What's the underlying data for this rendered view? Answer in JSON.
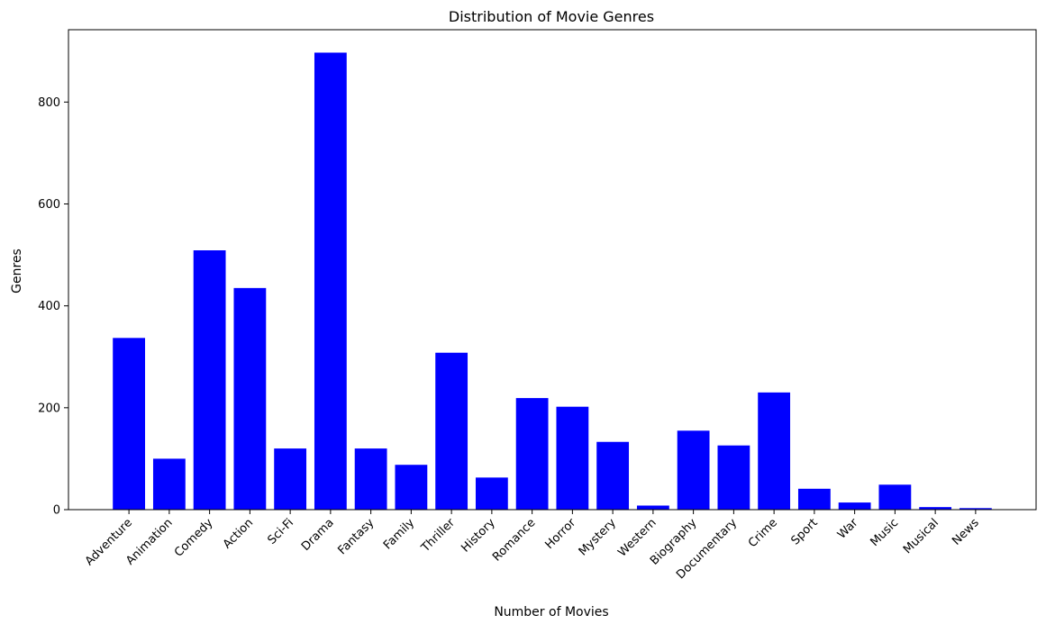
{
  "chart_data": {
    "type": "bar",
    "title": "Distribution of Movie Genres",
    "xlabel": "Number of Movies",
    "ylabel": "Genres",
    "categories": [
      "Adventure",
      "Animation",
      "Comedy",
      "Action",
      "Sci-Fi",
      "Drama",
      "Fantasy",
      "Family",
      "Thriller",
      "History",
      "Romance",
      "Horror",
      "Mystery",
      "Western",
      "Biography",
      "Documentary",
      "Crime",
      "Sport",
      "War",
      "Music",
      "Musical",
      "News"
    ],
    "values": [
      337,
      100,
      509,
      435,
      120,
      897,
      120,
      88,
      308,
      63,
      219,
      202,
      133,
      8,
      155,
      126,
      230,
      41,
      14,
      49,
      5,
      3
    ],
    "ylim": [
      0,
      942
    ],
    "yticks": [
      0,
      200,
      400,
      600,
      800
    ],
    "bar_color": "#0000ff",
    "grid": false,
    "legend": "none"
  }
}
